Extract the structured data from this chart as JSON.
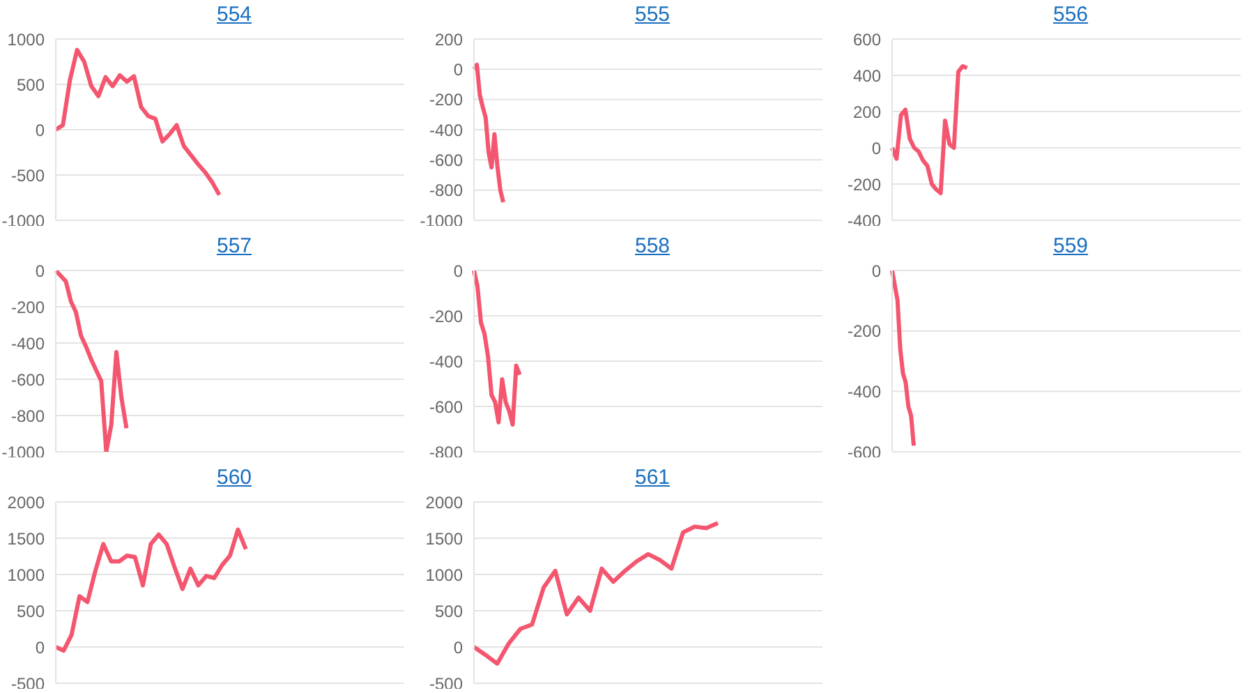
{
  "chart_data": [
    {
      "type": "line",
      "title": "554",
      "color": "#f4566f",
      "grid": "y",
      "tick_labels": "y",
      "ylim": [
        -1000,
        1000
      ],
      "yticks": [
        -1000,
        -500,
        0,
        500,
        1000
      ],
      "categories": [
        null,
        null,
        null,
        null,
        null,
        null,
        null,
        null,
        null,
        null,
        null,
        null,
        null,
        null,
        null,
        null,
        null,
        null,
        null,
        null,
        null,
        null,
        null,
        null,
        null,
        null,
        null,
        null,
        null,
        null,
        null,
        null,
        null,
        null,
        null,
        null,
        null,
        null,
        null,
        null,
        null,
        null,
        null,
        null,
        null,
        null,
        null,
        null,
        null,
        null
      ],
      "values": [
        0,
        50,
        550,
        880,
        750,
        480,
        370,
        580,
        480,
        600,
        530,
        590,
        250,
        150,
        120,
        -130,
        -50,
        50,
        -180,
        -280,
        -380,
        -470,
        -580,
        -720,
        null,
        null,
        null,
        null,
        null,
        null,
        null,
        null,
        null,
        null,
        null,
        null,
        null,
        null,
        null,
        null,
        null,
        null,
        null,
        null,
        null,
        null,
        null,
        null,
        null,
        null
      ]
    },
    {
      "type": "line",
      "title": "555",
      "color": "#f4566f",
      "grid": "y",
      "tick_labels": "y",
      "ylim": [
        -1000,
        200
      ],
      "yticks": [
        -1000,
        -800,
        -600,
        -400,
        -200,
        0,
        200
      ],
      "categories": [
        null,
        null,
        null,
        null,
        null,
        null,
        null,
        null,
        null,
        null,
        null,
        null,
        null,
        null,
        null,
        null,
        null,
        null,
        null,
        null,
        null,
        null,
        null,
        null,
        null,
        null,
        null,
        null,
        null,
        null,
        null,
        null,
        null,
        null,
        null,
        null,
        null,
        null,
        null,
        null,
        null,
        null,
        null,
        null,
        null,
        null,
        null,
        null,
        null,
        null,
        null,
        null,
        null,
        null,
        null,
        null,
        null,
        null,
        null,
        null,
        null,
        null,
        null,
        null,
        null,
        null,
        null,
        null,
        null,
        null,
        null,
        null,
        null,
        null,
        null,
        null,
        null,
        null,
        null,
        null,
        null,
        null,
        null,
        null,
        null,
        null,
        null,
        null,
        null,
        null,
        null,
        null,
        null,
        null,
        null,
        null,
        null,
        null,
        null,
        null,
        null,
        null,
        null,
        null,
        null,
        null,
        null,
        null,
        null,
        null,
        null,
        null,
        null,
        null,
        null,
        null,
        null,
        null,
        null,
        null
      ],
      "values": [
        0,
        30,
        -170,
        -250,
        -320,
        -550,
        -650,
        -430,
        -640,
        -800,
        -880,
        null,
        null,
        null,
        null,
        null,
        null,
        null,
        null,
        null,
        null,
        null,
        null,
        null,
        null,
        null,
        null,
        null,
        null,
        null,
        null,
        null,
        null,
        null,
        null,
        null,
        null,
        null,
        null,
        null,
        null,
        null,
        null,
        null,
        null,
        null,
        null,
        null,
        null,
        null,
        null,
        null,
        null,
        null,
        null,
        null,
        null,
        null,
        null,
        null,
        null,
        null,
        null,
        null,
        null,
        null,
        null,
        null,
        null,
        null,
        null,
        null,
        null,
        null,
        null,
        null,
        null,
        null,
        null,
        null,
        null,
        null,
        null,
        null,
        null,
        null,
        null,
        null,
        null,
        null,
        null,
        null,
        null,
        null,
        null,
        null,
        null,
        null,
        null,
        null,
        null,
        null,
        null,
        null,
        null,
        null,
        null,
        null,
        null,
        null,
        null,
        null,
        null,
        null,
        null,
        null,
        null,
        null,
        null,
        null
      ]
    },
    {
      "type": "line",
      "title": "556",
      "color": "#f4566f",
      "grid": "y",
      "tick_labels": "y",
      "ylim": [
        -400,
        600
      ],
      "yticks": [
        -400,
        -200,
        0,
        200,
        400,
        600
      ],
      "categories": [
        null,
        null,
        null,
        null,
        null,
        null,
        null,
        null,
        null,
        null,
        null,
        null,
        null,
        null,
        null,
        null,
        null,
        null,
        null,
        null,
        null,
        null,
        null,
        null,
        null,
        null,
        null,
        null,
        null,
        null,
        null,
        null,
        null,
        null,
        null,
        null,
        null,
        null,
        null,
        null,
        null,
        null,
        null,
        null,
        null,
        null,
        null,
        null,
        null,
        null,
        null,
        null,
        null,
        null,
        null,
        null,
        null,
        null,
        null,
        null,
        null,
        null,
        null,
        null,
        null,
        null,
        null,
        null,
        null,
        null,
        null,
        null,
        null,
        null,
        null,
        null,
        null,
        null,
        null,
        null
      ],
      "values": [
        0,
        -60,
        180,
        210,
        50,
        0,
        -20,
        -70,
        -100,
        -200,
        -230,
        -250,
        150,
        20,
        0,
        420,
        450,
        440,
        null,
        null,
        null,
        null,
        null,
        null,
        null,
        null,
        null,
        null,
        null,
        null,
        null,
        null,
        null,
        null,
        null,
        null,
        null,
        null,
        null,
        null,
        null,
        null,
        null,
        null,
        null,
        null,
        null,
        null,
        null,
        null,
        null,
        null,
        null,
        null,
        null,
        null,
        null,
        null,
        null,
        null,
        null,
        null,
        null,
        null,
        null,
        null,
        null,
        null,
        null,
        null,
        null,
        null,
        null,
        null,
        null,
        null,
        null,
        null,
        null,
        null
      ]
    },
    {
      "type": "line",
      "title": "557",
      "color": "#f4566f",
      "grid": "y",
      "tick_labels": "y",
      "ylim": [
        -1000,
        0
      ],
      "yticks": [
        -1000,
        -800,
        -600,
        -400,
        -200,
        0
      ],
      "categories": [
        null,
        null,
        null,
        null,
        null,
        null,
        null,
        null,
        null,
        null,
        null,
        null,
        null,
        null,
        null,
        null,
        null,
        null,
        null,
        null,
        null,
        null,
        null,
        null,
        null,
        null,
        null,
        null,
        null,
        null,
        null,
        null,
        null,
        null,
        null,
        null,
        null,
        null,
        null,
        null,
        null,
        null,
        null,
        null,
        null,
        null,
        null,
        null,
        null,
        null,
        null,
        null,
        null,
        null,
        null,
        null,
        null,
        null,
        null,
        null,
        null,
        null,
        null,
        null,
        null,
        null,
        null,
        null,
        null,
        null
      ],
      "values": [
        0,
        -30,
        -60,
        -170,
        -230,
        -360,
        -420,
        -490,
        -550,
        -610,
        -1000,
        -850,
        -450,
        -700,
        -870,
        null,
        null,
        null,
        null,
        null,
        null,
        null,
        null,
        null,
        null,
        null,
        null,
        null,
        null,
        null,
        null,
        null,
        null,
        null,
        null,
        null,
        null,
        null,
        null,
        null,
        null,
        null,
        null,
        null,
        null,
        null,
        null,
        null,
        null,
        null,
        null,
        null,
        null,
        null,
        null,
        null,
        null,
        null,
        null,
        null,
        null,
        null,
        null,
        null,
        null,
        null,
        null,
        null,
        null,
        null
      ]
    },
    {
      "type": "line",
      "title": "558",
      "color": "#f4566f",
      "grid": "y",
      "tick_labels": "y",
      "ylim": [
        -800,
        0
      ],
      "yticks": [
        -800,
        -600,
        -400,
        -200,
        0
      ],
      "categories": [
        null,
        null,
        null,
        null,
        null,
        null,
        null,
        null,
        null,
        null,
        null,
        null,
        null,
        null,
        null,
        null,
        null,
        null,
        null,
        null,
        null,
        null,
        null,
        null,
        null,
        null,
        null,
        null,
        null,
        null,
        null,
        null,
        null,
        null,
        null,
        null,
        null,
        null,
        null,
        null,
        null,
        null,
        null,
        null,
        null,
        null,
        null,
        null,
        null,
        null,
        null,
        null,
        null,
        null,
        null,
        null,
        null,
        null,
        null,
        null,
        null,
        null,
        null,
        null,
        null,
        null,
        null,
        null,
        null,
        null,
        null,
        null,
        null,
        null,
        null,
        null,
        null,
        null,
        null,
        null,
        null,
        null,
        null,
        null,
        null,
        null,
        null,
        null,
        null,
        null,
        null,
        null,
        null,
        null,
        null,
        null,
        null,
        null,
        null,
        null
      ],
      "values": [
        0,
        -70,
        -230,
        -280,
        -380,
        -550,
        -580,
        -670,
        -480,
        -580,
        -620,
        -680,
        -420,
        -460,
        null,
        null,
        null,
        null,
        null,
        null,
        null,
        null,
        null,
        null,
        null,
        null,
        null,
        null,
        null,
        null,
        null,
        null,
        null,
        null,
        null,
        null,
        null,
        null,
        null,
        null,
        null,
        null,
        null,
        null,
        null,
        null,
        null,
        null,
        null,
        null,
        null,
        null,
        null,
        null,
        null,
        null,
        null,
        null,
        null,
        null,
        null,
        null,
        null,
        null,
        null,
        null,
        null,
        null,
        null,
        null,
        null,
        null,
        null,
        null,
        null,
        null,
        null,
        null,
        null,
        null,
        null,
        null,
        null,
        null,
        null,
        null,
        null,
        null,
        null,
        null,
        null,
        null,
        null,
        null,
        null,
        null,
        null,
        null,
        null,
        null
      ]
    },
    {
      "type": "line",
      "title": "559",
      "color": "#f4566f",
      "grid": "y",
      "tick_labels": "y",
      "ylim": [
        -600,
        0
      ],
      "yticks": [
        -600,
        -400,
        -200,
        0
      ],
      "categories": [
        null,
        null,
        null,
        null,
        null,
        null,
        null,
        null,
        null,
        null,
        null,
        null,
        null,
        null,
        null,
        null,
        null,
        null,
        null,
        null,
        null,
        null,
        null,
        null,
        null,
        null,
        null,
        null,
        null,
        null,
        null,
        null,
        null,
        null,
        null,
        null,
        null,
        null,
        null,
        null,
        null,
        null,
        null,
        null,
        null,
        null,
        null,
        null,
        null,
        null,
        null,
        null,
        null,
        null,
        null,
        null,
        null,
        null,
        null,
        null,
        null,
        null,
        null,
        null,
        null,
        null,
        null,
        null,
        null,
        null,
        null,
        null,
        null,
        null,
        null,
        null,
        null,
        null,
        null,
        null,
        null,
        null,
        null,
        null,
        null,
        null,
        null,
        null,
        null,
        null,
        null,
        null,
        null,
        null,
        null,
        null,
        null,
        null,
        null,
        null,
        null,
        null,
        null,
        null,
        null,
        null,
        null,
        null,
        null,
        null,
        null,
        null,
        null,
        null,
        null,
        null,
        null,
        null,
        null,
        null,
        null,
        null,
        null,
        null,
        null,
        null,
        null,
        null,
        null,
        null
      ],
      "values": [
        0,
        -50,
        -100,
        -260,
        -340,
        -370,
        -450,
        -480,
        -580,
        null,
        null,
        null,
        null,
        null,
        null,
        null,
        null,
        null,
        null,
        null,
        null,
        null,
        null,
        null,
        null,
        null,
        null,
        null,
        null,
        null,
        null,
        null,
        null,
        null,
        null,
        null,
        null,
        null,
        null,
        null,
        null,
        null,
        null,
        null,
        null,
        null,
        null,
        null,
        null,
        null,
        null,
        null,
        null,
        null,
        null,
        null,
        null,
        null,
        null,
        null,
        null,
        null,
        null,
        null,
        null,
        null,
        null,
        null,
        null,
        null,
        null,
        null,
        null,
        null,
        null,
        null,
        null,
        null,
        null,
        null,
        null,
        null,
        null,
        null,
        null,
        null,
        null,
        null,
        null,
        null,
        null,
        null,
        null,
        null,
        null,
        null,
        null,
        null,
        null,
        null,
        null,
        null,
        null,
        null,
        null,
        null,
        null,
        null,
        null,
        null,
        null,
        null,
        null,
        null,
        null,
        null,
        null,
        null,
        null,
        null,
        null,
        null,
        null,
        null,
        null,
        null,
        null,
        null,
        null,
        null
      ]
    },
    {
      "type": "line",
      "title": "560",
      "color": "#f4566f",
      "grid": "y",
      "tick_labels": "y",
      "ylim": [
        -500,
        2000
      ],
      "yticks": [
        -500,
        0,
        500,
        1000,
        1500,
        2000
      ],
      "categories": [
        null,
        null,
        null,
        null,
        null,
        null,
        null,
        null,
        null,
        null,
        null,
        null,
        null,
        null,
        null,
        null,
        null,
        null,
        null,
        null,
        null,
        null,
        null,
        null,
        null,
        null,
        null,
        null,
        null,
        null,
        null,
        null,
        null,
        null,
        null,
        null,
        null,
        null,
        null,
        null,
        null,
        null,
        null,
        null,
        null
      ],
      "values": [
        0,
        -50,
        170,
        700,
        620,
        1050,
        1420,
        1180,
        1180,
        1260,
        1240,
        850,
        1420,
        1550,
        1420,
        1100,
        800,
        1080,
        850,
        980,
        950,
        1130,
        1260,
        1620,
        1350,
        null,
        null,
        null,
        null,
        null,
        null,
        null,
        null,
        null,
        null,
        null,
        null,
        null,
        null,
        null,
        null,
        null,
        null,
        null,
        null
      ]
    },
    {
      "type": "line",
      "title": "561",
      "color": "#f4566f",
      "grid": "y",
      "tick_labels": "y",
      "ylim": [
        -500,
        2000
      ],
      "yticks": [
        -500,
        0,
        500,
        1000,
        1500,
        2000
      ],
      "categories": [
        null,
        null,
        null,
        null,
        null,
        null,
        null,
        null,
        null,
        null,
        null,
        null,
        null,
        null,
        null,
        null,
        null,
        null,
        null,
        null,
        null,
        null,
        null,
        null,
        null,
        null,
        null,
        null,
        null,
        null,
        null
      ],
      "values": [
        0,
        -110,
        -230,
        50,
        250,
        310,
        820,
        1050,
        450,
        680,
        500,
        1080,
        900,
        1050,
        1180,
        1280,
        1200,
        1080,
        1580,
        1660,
        1640,
        1710,
        null,
        null,
        null,
        null,
        null,
        null,
        null,
        null,
        null
      ]
    }
  ]
}
